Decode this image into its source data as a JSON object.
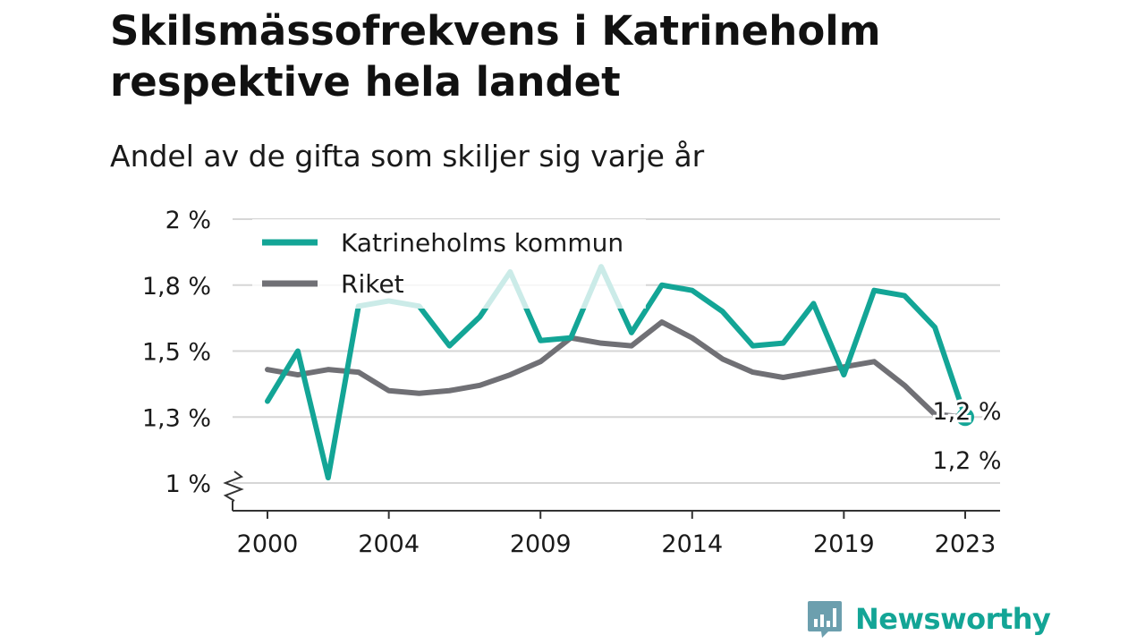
{
  "chart_data": {
    "type": "line",
    "title": "Skilsmässofrekvens i Katrineholm respektive hela landet",
    "subtitle": "Andel av de gifta som skiljer sig varje år",
    "x": [
      2000,
      2001,
      2002,
      2003,
      2004,
      2005,
      2006,
      2007,
      2008,
      2009,
      2010,
      2011,
      2012,
      2013,
      2014,
      2015,
      2016,
      2017,
      2018,
      2019,
      2020,
      2021,
      2022,
      2023
    ],
    "x_ticks": [
      "2000",
      "2004",
      "2009",
      "2014",
      "2019",
      "2023"
    ],
    "y_ticks": [
      "1 %",
      "1,3 %",
      "1,5 %",
      "1,8 %",
      "2 %"
    ],
    "ylim": [
      1.0,
      2.0
    ],
    "axis_break": true,
    "grid": true,
    "legend_position": "top-left",
    "series": [
      {
        "name": "Katrineholms kommun",
        "color": "#13a596",
        "values": [
          1.31,
          1.5,
          1.02,
          1.67,
          1.69,
          1.67,
          1.52,
          1.63,
          1.8,
          1.54,
          1.55,
          1.82,
          1.57,
          1.75,
          1.73,
          1.65,
          1.52,
          1.53,
          1.68,
          1.41,
          1.73,
          1.71,
          1.59,
          1.25
        ],
        "end_label": "1,2 %"
      },
      {
        "name": "Riket",
        "color": "#707075",
        "values": [
          1.43,
          1.41,
          1.43,
          1.42,
          1.35,
          1.34,
          1.35,
          1.37,
          1.41,
          1.46,
          1.55,
          1.53,
          1.52,
          1.61,
          1.55,
          1.47,
          1.42,
          1.4,
          1.42,
          1.44,
          1.46,
          1.37,
          1.26,
          1.25
        ],
        "end_label": "1,2 %"
      }
    ]
  },
  "branding": {
    "name": "Newsworthy",
    "icon": "bar-chart-speech-bubble-icon",
    "color": "#13a596"
  }
}
